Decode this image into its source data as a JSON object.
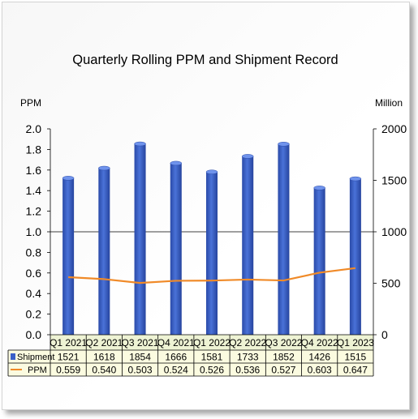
{
  "chart_data": {
    "type": "bar+line",
    "title": "Quarterly Rolling PPM and Shipment Record",
    "categories": [
      "Q1 2021",
      "Q2 2021",
      "Q3 2021",
      "Q4 2021",
      "Q1 2022",
      "Q2 2022",
      "Q3 2022",
      "Q4 2022",
      "Q1 2023"
    ],
    "series": [
      {
        "name": "Shipment",
        "type": "bar",
        "axis": "right",
        "color": "#3a5fc8",
        "values": [
          1521,
          1618,
          1854,
          1666,
          1581,
          1733,
          1852,
          1426,
          1515
        ]
      },
      {
        "name": "PPM",
        "type": "line",
        "axis": "left",
        "color": "#f08a28",
        "values": [
          0.559,
          0.54,
          0.503,
          0.524,
          0.526,
          0.536,
          0.527,
          0.603,
          0.647
        ]
      }
    ],
    "left_axis": {
      "label": "PPM",
      "ylim": [
        0,
        2.0
      ],
      "ticks": [
        "0.0",
        "0.2",
        "0.4",
        "0.6",
        "0.8",
        "1.0",
        "1.2",
        "1.4",
        "1.6",
        "1.8",
        "2.0"
      ]
    },
    "right_axis": {
      "label": "Million",
      "ylim": [
        0,
        2000
      ],
      "ticks": [
        "0",
        "500",
        "1000",
        "1500",
        "2000"
      ]
    },
    "value_display": {
      "Shipment": [
        "1521",
        "1618",
        "1854",
        "1666",
        "1581",
        "1733",
        "1852",
        "1426",
        "1515"
      ],
      "PPM": [
        "0.559",
        "0.540",
        "0.503",
        "0.524",
        "0.526",
        "0.536",
        "0.527",
        "0.603",
        "0.647"
      ]
    },
    "grid": "horizontal major at 1.0",
    "data_table": true
  }
}
